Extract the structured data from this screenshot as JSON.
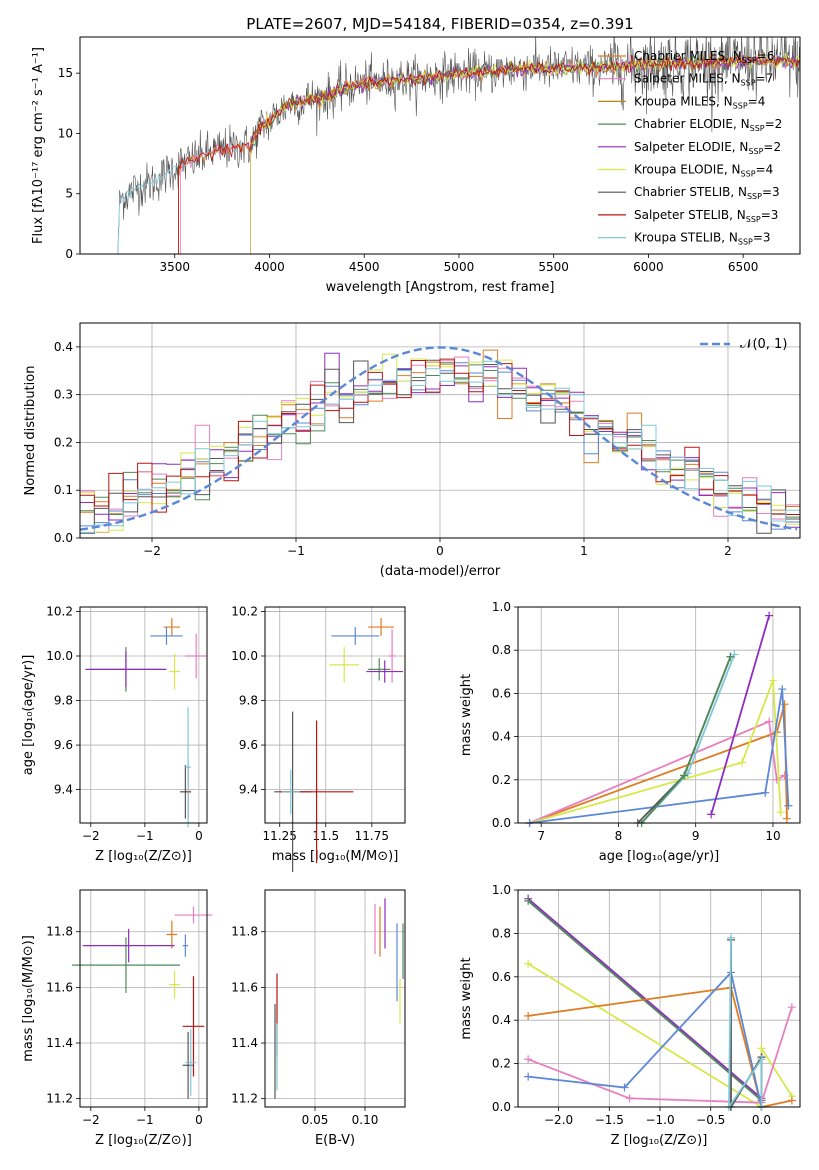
{
  "figure_title": "PLATE=2607, MJD=54184, FIBERID=0354, z=0.391",
  "colors": {
    "chabrier_miles": "#e07b20",
    "salpeter_miles": "#e87fbf",
    "kroupa_miles": "#b8860b",
    "chabrier_elodie": "#4f8a58",
    "salpeter_elodie": "#8e2dc0",
    "kroupa_elodie": "#d6e84a",
    "chabrier_stelib": "#555555",
    "salpeter_stelib": "#b81414",
    "kroupa_stelib": "#7fc8d8",
    "blue": "#5b88d6",
    "gauss": "#5b88d6",
    "grid": "#b0b0b0"
  },
  "chart_data": [
    {
      "id": "spectrum",
      "type": "line",
      "xlabel": "wavelength [Angstrom, rest frame]",
      "ylabel": "Flux [fλ10⁻¹⁷ erg cm⁻² s⁻¹ A⁻¹]",
      "xlim": [
        3000,
        6800
      ],
      "ylim": [
        0,
        18
      ],
      "xticks": [
        3500,
        4000,
        4500,
        5000,
        5500,
        6000,
        6500
      ],
      "yticks": [
        0,
        5,
        10,
        15
      ],
      "grid": false,
      "legend_position": "upper-right",
      "legend": [
        "Chabrier MILES, N_SSP=6",
        "Salpeter MILES, N_SSP=7",
        "Kroupa MILES, N_SSP=4",
        "Chabrier ELODIE, N_SSP=2",
        "Salpeter ELODIE, N_SSP=2",
        "Kroupa ELODIE, N_SSP=4",
        "Chabrier STELIB, N_SSP=3",
        "Salpeter STELIB, N_SSP=3",
        "Kroupa STELIB, N_SSP=3"
      ],
      "continuum": [
        [
          3200,
          0
        ],
        [
          3210,
          4.5
        ],
        [
          3300,
          5.5
        ],
        [
          3400,
          6
        ],
        [
          3500,
          7.2
        ],
        [
          3600,
          7.8
        ],
        [
          3700,
          8.5
        ],
        [
          3800,
          8.8
        ],
        [
          3900,
          9
        ],
        [
          3950,
          10.5
        ],
        [
          4000,
          11
        ],
        [
          4100,
          12.5
        ],
        [
          4200,
          12.8
        ],
        [
          4300,
          13
        ],
        [
          4400,
          13.8
        ],
        [
          4500,
          14.2
        ],
        [
          4600,
          14.3
        ],
        [
          4700,
          14.5
        ],
        [
          4800,
          14.5
        ],
        [
          4900,
          14.8
        ],
        [
          5000,
          15
        ],
        [
          5100,
          15
        ],
        [
          5200,
          15.2
        ],
        [
          5300,
          15.3
        ],
        [
          5400,
          15.5
        ],
        [
          5500,
          15.3
        ],
        [
          5600,
          15.5
        ],
        [
          5700,
          15.4
        ],
        [
          5800,
          15.5
        ],
        [
          5900,
          15.6
        ],
        [
          6000,
          15.7
        ],
        [
          6100,
          15.8
        ],
        [
          6200,
          15.8
        ],
        [
          6300,
          15.9
        ],
        [
          6400,
          15.9
        ],
        [
          6500,
          16
        ],
        [
          6700,
          16
        ]
      ]
    },
    {
      "id": "residuals",
      "type": "histogram",
      "xlabel": "(data-model)/error",
      "ylabel": "Normed distribution",
      "xlim": [
        -2.5,
        2.5
      ],
      "ylim": [
        0,
        0.45
      ],
      "xticks": [
        -2,
        -1,
        0,
        1,
        2
      ],
      "yticks": [
        0.0,
        0.1,
        0.2,
        0.3,
        0.4
      ],
      "grid": true,
      "legend_position": "upper-right",
      "legend": [
        "𝒩(0, 1)"
      ],
      "bin_width": 0.1
    },
    {
      "id": "age_vs_Z",
      "type": "errorbar",
      "xlabel": "Z [log₁₀(Z/Z⊙)]",
      "ylabel": "age  [log₁₀(age/yr)]",
      "xlim": [
        -2.2,
        0.15
      ],
      "ylim": [
        9.25,
        10.22
      ],
      "xticks": [
        -2,
        -1,
        0
      ],
      "yticks": [
        9.4,
        9.6,
        9.8,
        10.0,
        10.2
      ],
      "grid": true,
      "points": [
        {
          "c": "chabrier_miles",
          "x": -0.5,
          "y": 10.13,
          "xe": 0.15,
          "ye": 0.04
        },
        {
          "c": "salpeter_miles",
          "x": -0.05,
          "y": 10.0,
          "xe": 0.2,
          "ye": 0.1
        },
        {
          "c": "blue",
          "x": -0.6,
          "y": 10.09,
          "xe": 0.3,
          "ye": 0.04
        },
        {
          "c": "chabrier_elodie",
          "x": -1.35,
          "y": 9.94,
          "xe": 0.65,
          "ye": 0.1
        },
        {
          "c": "salpeter_elodie",
          "x": -1.35,
          "y": 9.94,
          "xe": 0.75,
          "ye": 0.08
        },
        {
          "c": "kroupa_elodie",
          "x": -0.45,
          "y": 9.93,
          "xe": 0.1,
          "ye": 0.08
        },
        {
          "c": "chabrier_stelib",
          "x": -0.25,
          "y": 9.39,
          "xe": 0.1,
          "ye": 0.12
        },
        {
          "c": "salpeter_stelib",
          "x": -0.2,
          "y": 9.39,
          "xe": 0.05,
          "ye": 0.12
        },
        {
          "c": "kroupa_stelib",
          "x": -0.2,
          "y": 9.5,
          "xe": 0.05,
          "ye": 0.27
        }
      ]
    },
    {
      "id": "age_vs_mass",
      "type": "errorbar",
      "xlabel": "mass [log₁₀(M/M⊙)]",
      "xlim": [
        11.17,
        11.93
      ],
      "ylim": [
        9.25,
        10.22
      ],
      "xticks": [
        11.25,
        11.5,
        11.75
      ],
      "yticks": [
        9.4,
        9.6,
        9.8,
        10.0,
        10.2
      ],
      "grid": true,
      "points": [
        {
          "c": "chabrier_miles",
          "x": 11.8,
          "y": 10.13,
          "xe": 0.07,
          "ye": 0.04
        },
        {
          "c": "salpeter_miles",
          "x": 11.86,
          "y": 10.0,
          "xe": 0.02,
          "ye": 0.12
        },
        {
          "c": "blue",
          "x": 11.66,
          "y": 10.09,
          "xe": 0.13,
          "ye": 0.04
        },
        {
          "c": "chabrier_elodie",
          "x": 11.79,
          "y": 9.94,
          "xe": 0.06,
          "ye": 0.05
        },
        {
          "c": "salpeter_elodie",
          "x": 11.82,
          "y": 9.93,
          "xe": 0.1,
          "ye": 0.05
        },
        {
          "c": "kroupa_elodie",
          "x": 11.6,
          "y": 9.96,
          "xe": 0.08,
          "ye": 0.08
        },
        {
          "c": "chabrier_stelib",
          "x": 11.32,
          "y": 9.39,
          "xe": 0.1,
          "ye": 0.36
        },
        {
          "c": "salpeter_stelib",
          "x": 11.45,
          "y": 9.39,
          "xe": 0.2,
          "ye": 0.32
        },
        {
          "c": "kroupa_stelib",
          "x": 11.31,
          "y": 9.39,
          "xe": 0.05,
          "ye": 0.1
        }
      ]
    },
    {
      "id": "weight_vs_age",
      "type": "line",
      "xlabel": "age  [log₁₀(age/yr)]",
      "ylabel": "mass weight",
      "xlim": [
        6.7,
        10.35
      ],
      "ylim": [
        0,
        1.0
      ],
      "xticks": [
        7,
        8,
        9,
        10
      ],
      "yticks": [
        0.0,
        0.2,
        0.4,
        0.6,
        0.8,
        1.0
      ],
      "grid": true,
      "series": [
        {
          "c": "chabrier_miles",
          "pts": [
            [
              6.85,
              0
            ],
            [
              10.05,
              0.42
            ],
            [
              10.15,
              0.55
            ],
            [
              10.18,
              0.02
            ]
          ]
        },
        {
          "c": "salpeter_miles",
          "pts": [
            [
              6.85,
              0
            ],
            [
              9.95,
              0.47
            ],
            [
              10.05,
              0.2
            ],
            [
              10.15,
              0.22
            ]
          ]
        },
        {
          "c": "kroupa_elodie",
          "pts": [
            [
              6.85,
              0
            ],
            [
              9.6,
              0.28
            ],
            [
              10.0,
              0.66
            ],
            [
              10.1,
              0.05
            ]
          ]
        },
        {
          "c": "blue",
          "pts": [
            [
              6.85,
              0
            ],
            [
              9.9,
              0.14
            ],
            [
              10.12,
              0.62
            ],
            [
              10.2,
              0.08
            ]
          ]
        },
        {
          "c": "chabrier_stelib",
          "pts": [
            [
              8.25,
              0
            ],
            [
              8.85,
              0.22
            ],
            [
              9.45,
              0.77
            ]
          ]
        },
        {
          "c": "kroupa_stelib",
          "pts": [
            [
              8.3,
              0
            ],
            [
              8.9,
              0.23
            ],
            [
              9.5,
              0.78
            ]
          ]
        },
        {
          "c": "chabrier_elodie",
          "pts": [
            [
              8.3,
              0
            ],
            [
              8.85,
              0.22
            ],
            [
              9.45,
              0.77
            ]
          ]
        },
        {
          "c": "salpeter_elodie",
          "pts": [
            [
              9.2,
              0.04
            ],
            [
              9.95,
              0.96
            ]
          ]
        }
      ]
    },
    {
      "id": "mass_vs_Z",
      "type": "errorbar",
      "xlabel": "Z [log₁₀(Z/Z⊙)]",
      "ylabel": "mass [log₁₀(M/M⊙)]",
      "xlim": [
        -2.2,
        0.15
      ],
      "ylim": [
        11.17,
        11.95
      ],
      "xticks": [
        -2,
        -1,
        0
      ],
      "yticks": [
        11.2,
        11.4,
        11.6,
        11.8
      ],
      "grid": true,
      "points": [
        {
          "c": "chabrier_miles",
          "x": -0.5,
          "y": 11.79,
          "xe": 0.1,
          "ye": 0.05
        },
        {
          "c": "salpeter_miles",
          "x": -0.1,
          "y": 11.86,
          "xe": 0.35,
          "ye": 0.03
        },
        {
          "c": "chabrier_elodie",
          "x": -1.35,
          "y": 11.68,
          "xe": 1.0,
          "ye": 0.1
        },
        {
          "c": "salpeter_elodie",
          "x": -1.3,
          "y": 11.75,
          "xe": 0.85,
          "ye": 0.06
        },
        {
          "c": "kroupa_elodie",
          "x": -0.45,
          "y": 11.61,
          "xe": 0.1,
          "ye": 0.05
        },
        {
          "c": "salpeter_stelib",
          "x": -0.1,
          "y": 11.46,
          "xe": 0.2,
          "ye": 0.18
        },
        {
          "c": "chabrier_stelib",
          "x": -0.2,
          "y": 11.32,
          "xe": 0.1,
          "ye": 0.12
        },
        {
          "c": "kroupa_stelib",
          "x": -0.15,
          "y": 11.33,
          "xe": 0.1,
          "ye": 0.12
        },
        {
          "c": "blue",
          "x": -0.25,
          "y": 11.75,
          "xe": 0.05,
          "ye": 0.04
        }
      ]
    },
    {
      "id": "mass_vs_ebv",
      "type": "errorbar",
      "xlabel": "E(B-V)",
      "xlim": [
        0.0,
        0.14
      ],
      "ylim": [
        11.17,
        11.95
      ],
      "xticks": [
        0.05,
        0.1
      ],
      "xticklabels": [
        "0.05",
        "0.10"
      ],
      "yticks": [
        11.2,
        11.4,
        11.6,
        11.8
      ],
      "grid": true,
      "points": [
        {
          "c": "chabrier_stelib",
          "x": 0.01,
          "y": 11.37,
          "xe": 0.0,
          "ye": 0.17
        },
        {
          "c": "salpeter_stelib",
          "x": 0.012,
          "y": 11.5,
          "xe": 0.0,
          "ye": 0.15
        },
        {
          "c": "kroupa_stelib",
          "x": 0.012,
          "y": 11.35,
          "xe": 0.0,
          "ye": 0.12
        },
        {
          "c": "chabrier_miles",
          "x": 0.115,
          "y": 11.8,
          "xe": 0.0,
          "ye": 0.09
        },
        {
          "c": "salpeter_elodie",
          "x": 0.12,
          "y": 11.83,
          "xe": 0.0,
          "ye": 0.09
        },
        {
          "c": "salpeter_miles",
          "x": 0.11,
          "y": 11.81,
          "xe": 0.0,
          "ye": 0.09
        },
        {
          "c": "blue",
          "x": 0.132,
          "y": 11.69,
          "xe": 0.0,
          "ye": 0.14
        },
        {
          "c": "kroupa_elodie",
          "x": 0.135,
          "y": 11.55,
          "xe": 0.0,
          "ye": 0.08
        },
        {
          "c": "chabrier_elodie",
          "x": 0.138,
          "y": 11.73,
          "xe": 0.0,
          "ye": 0.1
        }
      ]
    },
    {
      "id": "weight_vs_Z",
      "type": "line",
      "xlabel": "Z [log₁₀(Z/Z⊙)]",
      "ylabel": "mass weight",
      "xlim": [
        -2.4,
        0.38
      ],
      "ylim": [
        0,
        1.0
      ],
      "xticks": [
        -2.0,
        -1.5,
        -1.0,
        -0.5,
        0.0
      ],
      "xticklabels": [
        "−2.0",
        "−1.5",
        "−1.0",
        "−0.5",
        "0.0"
      ],
      "yticks": [
        0.0,
        0.2,
        0.4,
        0.6,
        0.8,
        1.0
      ],
      "grid": true,
      "series": [
        {
          "c": "salpeter_elodie",
          "pts": [
            [
              -2.3,
              0.96
            ],
            [
              0.0,
              0.04
            ]
          ]
        },
        {
          "c": "chabrier_elodie",
          "pts": [
            [
              -2.3,
              0.95
            ],
            [
              0.0,
              0.03
            ]
          ]
        },
        {
          "c": "kroupa_elodie",
          "pts": [
            [
              -2.3,
              0.66
            ],
            [
              0.0,
              0.0
            ],
            [
              0.0,
              0.27
            ],
            [
              0.3,
              0.05
            ]
          ]
        },
        {
          "c": "chabrier_miles",
          "pts": [
            [
              -2.3,
              0.42
            ],
            [
              -0.3,
              0.55
            ],
            [
              0.0,
              0.0
            ],
            [
              0.3,
              0.03
            ]
          ]
        },
        {
          "c": "salpeter_miles",
          "pts": [
            [
              -2.3,
              0.22
            ],
            [
              -1.3,
              0.04
            ],
            [
              0.0,
              0.02
            ],
            [
              0.3,
              0.46
            ]
          ]
        },
        {
          "c": "blue",
          "pts": [
            [
              -2.3,
              0.14
            ],
            [
              -1.35,
              0.09
            ],
            [
              -0.3,
              0.62
            ],
            [
              0.0,
              0.0
            ]
          ]
        },
        {
          "c": "chabrier_stelib",
          "pts": [
            [
              -0.3,
              0.77
            ],
            [
              -0.3,
              0.0
            ],
            [
              0.0,
              0.23
            ],
            [
              0.0,
              0.0
            ]
          ]
        },
        {
          "c": "kroupa_stelib",
          "pts": [
            [
              -0.3,
              0.78
            ],
            [
              -0.32,
              0.0
            ],
            [
              0.0,
              0.22
            ],
            [
              0.0,
              0.0
            ]
          ]
        }
      ]
    }
  ]
}
